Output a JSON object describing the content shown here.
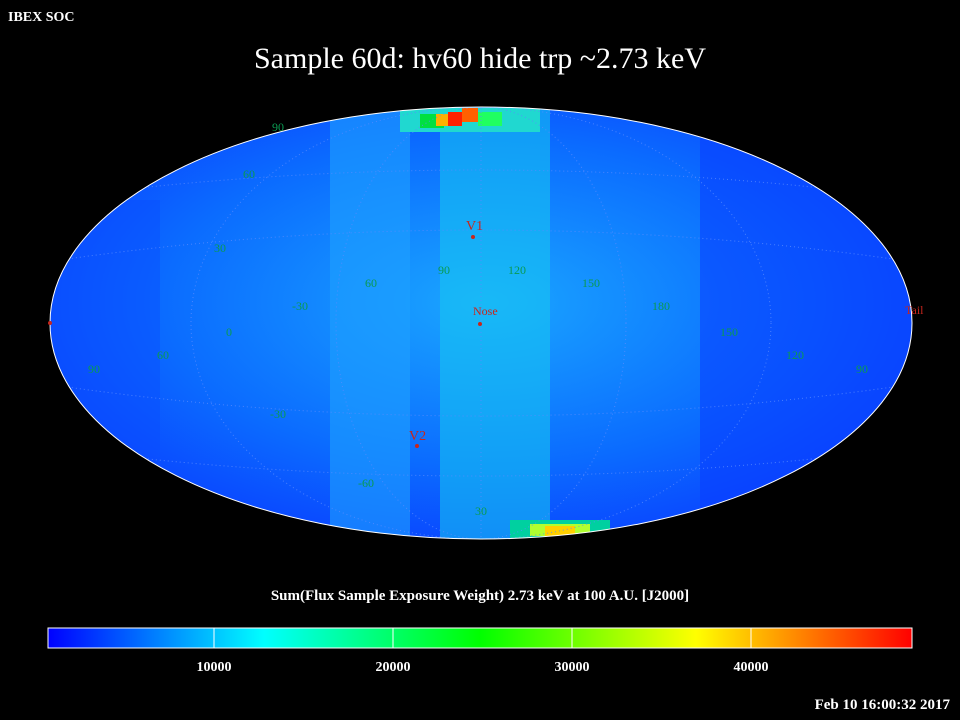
{
  "header": {
    "soc": "IBEX SOC",
    "title": "Sample 60d: hv60 hide trp ~2.73 keV"
  },
  "colorbar": {
    "label": "Sum(Flux Sample Exposure Weight)  2.73 keV at 100 A.U. [J2000]",
    "ticks": [
      "10000",
      "20000",
      "30000",
      "40000"
    ],
    "colors": [
      "#0000ff",
      "#00ffff",
      "#00ff00",
      "#ffff00",
      "#ff0000"
    ]
  },
  "timestamp": "Feb 10 16:00:32 2017",
  "map": {
    "grid_labels": [
      "90",
      "60",
      "30",
      "0",
      "-30",
      "-60",
      "90",
      "60",
      "30",
      "60",
      "90",
      "120",
      "150",
      "180",
      "150",
      "120",
      "90",
      "-30",
      "-60"
    ],
    "markers": {
      "v1": "V1",
      "nose": "Nose",
      "v2": "V2",
      "tail": "Tail"
    }
  }
}
